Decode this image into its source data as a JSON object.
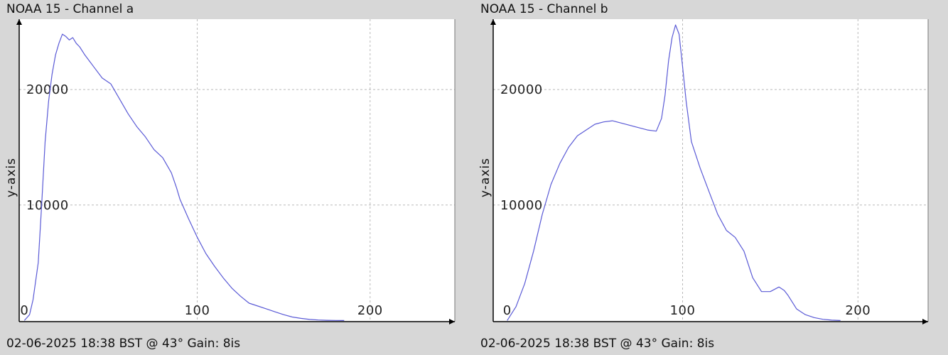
{
  "chart_data": [
    {
      "type": "line",
      "title": "NOAA 15 - Channel a",
      "footer": "02-06-2025 18:38 BST @ 43° Gain: 8is",
      "ylabel": "y-axis",
      "xlim": [
        -3,
        249
      ],
      "ylim": [
        -100,
        26100
      ],
      "x_ticks": [
        0,
        100,
        200
      ],
      "y_ticks": [
        10000,
        20000
      ],
      "grid": true,
      "line_color": "#5a5ad6",
      "series": [
        {
          "x": [
            0,
            3,
            5,
            8,
            10,
            12,
            14,
            16,
            18,
            20,
            22,
            24,
            26,
            28,
            30,
            32,
            35,
            40,
            45,
            50,
            55,
            60,
            65,
            70,
            75,
            80,
            85,
            88,
            90,
            95,
            100,
            105,
            110,
            115,
            120,
            125,
            130,
            135,
            140,
            145,
            150,
            155,
            160,
            165,
            170,
            175,
            180,
            185
          ],
          "y": [
            0,
            500,
            1800,
            5000,
            10000,
            15500,
            19000,
            21300,
            23000,
            24000,
            24800,
            24600,
            24300,
            24500,
            24000,
            23700,
            23000,
            22000,
            21000,
            20500,
            19200,
            17900,
            16800,
            15900,
            14800,
            14100,
            12800,
            11500,
            10500,
            8800,
            7200,
            5800,
            4700,
            3700,
            2800,
            2100,
            1500,
            1250,
            1000,
            750,
            500,
            300,
            180,
            90,
            40,
            15,
            5,
            0
          ]
        }
      ]
    },
    {
      "type": "line",
      "title": "NOAA 15 - Channel b",
      "footer": "02-06-2025 18:38 BST @ 43° Gain: 8is",
      "ylabel": "y-axis",
      "xlim": [
        -8,
        240
      ],
      "ylim": [
        -100,
        26100
      ],
      "x_ticks": [
        0,
        100,
        200
      ],
      "y_ticks": [
        10000,
        20000
      ],
      "grid": true,
      "line_color": "#5a5ad6",
      "series": [
        {
          "x": [
            0,
            5,
            10,
            15,
            20,
            25,
            30,
            35,
            40,
            45,
            50,
            55,
            60,
            65,
            70,
            75,
            80,
            85,
            88,
            90,
            92,
            94,
            96,
            98,
            100,
            102,
            105,
            110,
            115,
            120,
            125,
            130,
            135,
            140,
            145,
            150,
            155,
            158,
            160,
            165,
            170,
            175,
            180,
            185,
            190
          ],
          "y": [
            0,
            1200,
            3200,
            6000,
            9200,
            11800,
            13600,
            15000,
            16000,
            16500,
            17000,
            17200,
            17300,
            17100,
            16900,
            16700,
            16500,
            16400,
            17500,
            19500,
            22500,
            24500,
            25600,
            24800,
            22000,
            19000,
            15500,
            13200,
            11200,
            9200,
            7800,
            7200,
            6000,
            3700,
            2500,
            2500,
            2900,
            2600,
            2200,
            1000,
            500,
            250,
            100,
            30,
            0
          ]
        }
      ]
    }
  ]
}
